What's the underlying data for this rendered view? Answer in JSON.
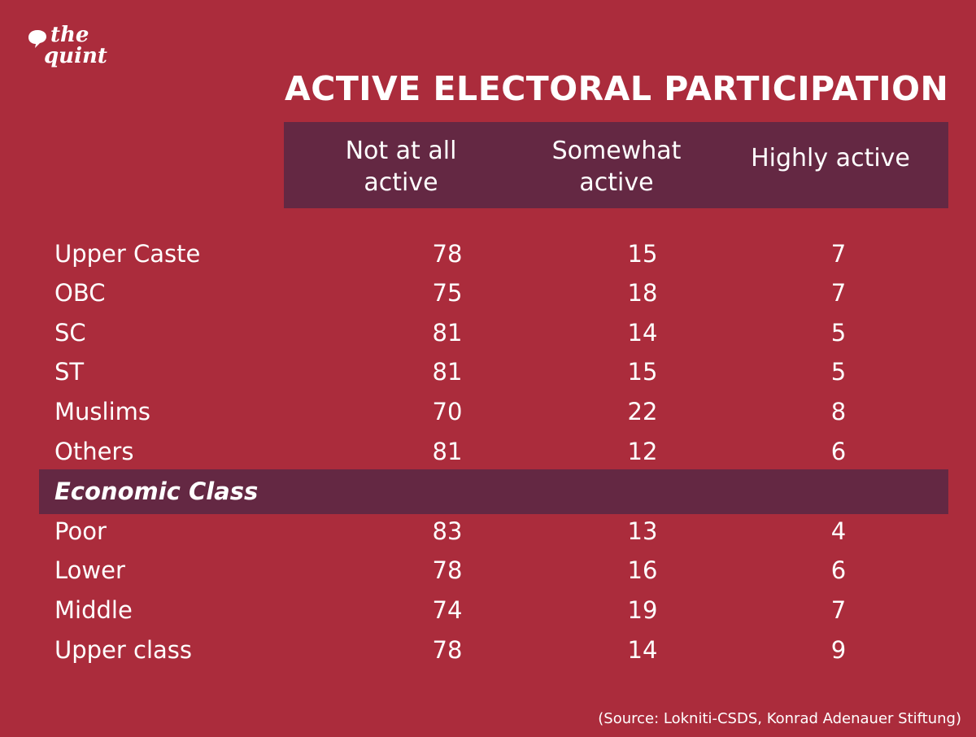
{
  "brand": {
    "line1": "the",
    "line2": "quint"
  },
  "chart_data": {
    "type": "table",
    "title": "ACTIVE ELECTORAL PARTICIPATION",
    "columns": [
      {
        "line1": "Not at all",
        "line2": "active"
      },
      {
        "line1": "Somewhat",
        "line2": "active"
      },
      {
        "line1": "Highly active",
        "line2": ""
      }
    ],
    "groups": [
      {
        "label": "",
        "rows": [
          {
            "label": "Upper Caste",
            "values": [
              78,
              15,
              7
            ]
          },
          {
            "label": "OBC",
            "values": [
              75,
              18,
              7
            ]
          },
          {
            "label": "SC",
            "values": [
              81,
              14,
              5
            ]
          },
          {
            "label": "ST",
            "values": [
              81,
              15,
              5
            ]
          },
          {
            "label": "Muslims",
            "values": [
              70,
              22,
              8
            ]
          },
          {
            "label": "Others",
            "values": [
              81,
              12,
              6
            ]
          }
        ]
      },
      {
        "label": "Economic Class",
        "rows": [
          {
            "label": "Poor",
            "values": [
              83,
              13,
              4
            ]
          },
          {
            "label": "Lower",
            "values": [
              78,
              16,
              6
            ]
          },
          {
            "label": "Middle",
            "values": [
              74,
              19,
              7
            ]
          },
          {
            "label": "Upper class",
            "values": [
              78,
              14,
              9
            ]
          }
        ]
      }
    ],
    "source": "(Source: Lokniti-CSDS, Konrad Adenauer Stiftung)"
  },
  "colors": {
    "background": "#ab2c3c",
    "band": "#642843",
    "text": "#ffffff"
  }
}
